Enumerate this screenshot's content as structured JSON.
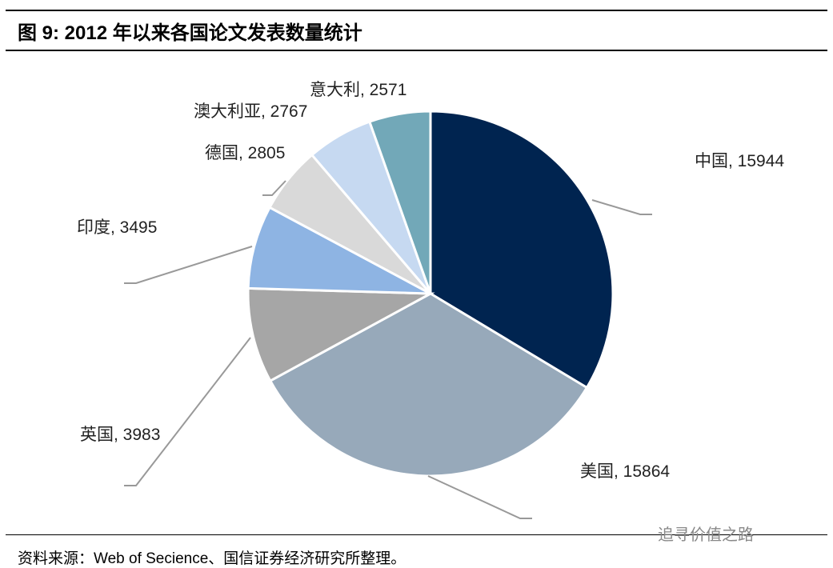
{
  "title": "图 9:  2012 年以来各国论文发表数量统计",
  "source": "资料来源：Web of Secience、国信证券经济研究所整理。",
  "watermark": "追寻价值之路",
  "chart_data": {
    "type": "pie",
    "title": "2012 年以来各国论文发表数量统计",
    "start": "12 o'clock, clockwise",
    "slices": [
      {
        "name": "中国",
        "value": 15944,
        "label": "中国, 15944",
        "color": "#002450"
      },
      {
        "name": "美国",
        "value": 15864,
        "label": "美国, 15864",
        "color": "#97a9ba"
      },
      {
        "name": "英国",
        "value": 3983,
        "label": "英国, 3983",
        "color": "#a6a6a6"
      },
      {
        "name": "印度",
        "value": 3495,
        "label": "印度, 3495",
        "color": "#8eb4e3"
      },
      {
        "name": "德国",
        "value": 2805,
        "label": "德国, 2805",
        "color": "#d9d9d9"
      },
      {
        "name": "澳大利亚",
        "value": 2767,
        "label": "澳大利亚, 2767",
        "color": "#c6d9f1"
      },
      {
        "name": "意大利",
        "value": 2571,
        "label": "意大利, 2571",
        "color": "#72a8b8"
      }
    ]
  }
}
